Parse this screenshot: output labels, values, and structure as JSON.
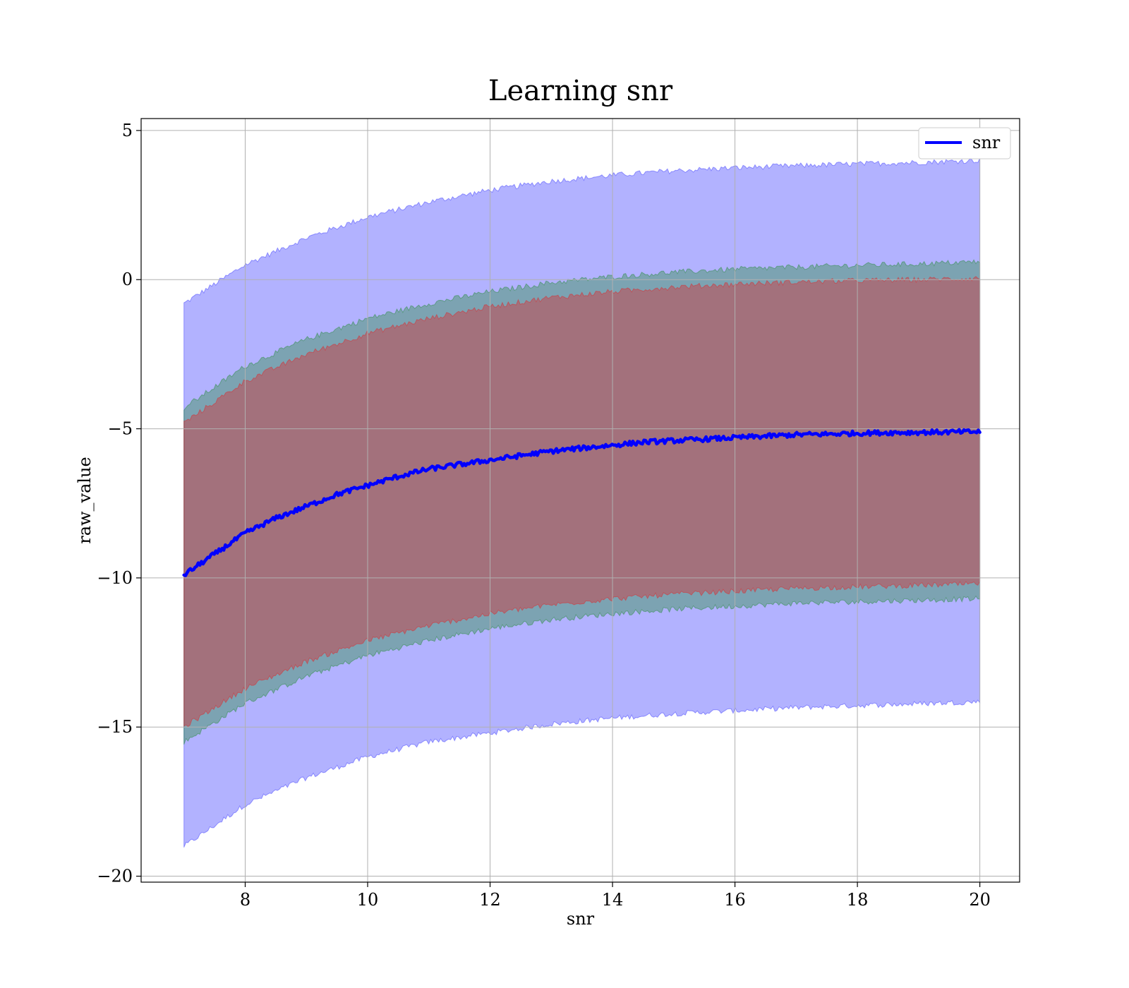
{
  "chart_data": {
    "type": "area",
    "title": "Learning snr",
    "xlabel": "snr",
    "ylabel": "raw_value",
    "xlim": [
      6.3,
      20.65
    ],
    "ylim": [
      -20.2,
      5.4
    ],
    "xticks": [
      8,
      10,
      12,
      14,
      16,
      18,
      20
    ],
    "yticks": [
      5,
      0,
      -5,
      -10,
      -15,
      -20
    ],
    "xtick_labels": [
      "8",
      "10",
      "12",
      "14",
      "16",
      "18",
      "20"
    ],
    "ytick_labels": [
      "5",
      "0",
      "−5",
      "−10",
      "−15",
      "−20"
    ],
    "grid": true,
    "legend": {
      "position": "top-right",
      "entries": [
        "snr"
      ]
    },
    "x_range": [
      7,
      20
    ],
    "bands": [
      {
        "color": "#0000ff",
        "x": [
          7,
          8,
          9,
          10,
          11,
          12,
          13,
          14,
          15,
          16,
          17,
          18,
          19,
          20
        ],
        "upper": [
          -0.8,
          0.5,
          1.4,
          2.1,
          2.6,
          3.0,
          3.3,
          3.5,
          3.65,
          3.75,
          3.82,
          3.88,
          3.93,
          4.0
        ],
        "lower": [
          -19.0,
          -17.6,
          -16.7,
          -16.0,
          -15.5,
          -15.2,
          -14.9,
          -14.7,
          -14.55,
          -14.45,
          -14.35,
          -14.28,
          -14.22,
          -14.15
        ]
      },
      {
        "color": "#008000",
        "x": [
          7,
          8,
          9,
          10,
          11,
          12,
          13,
          14,
          15,
          16,
          17,
          18,
          19,
          20
        ],
        "upper": [
          -4.3,
          -2.9,
          -2.0,
          -1.3,
          -0.8,
          -0.4,
          -0.1,
          0.1,
          0.25,
          0.35,
          0.42,
          0.48,
          0.53,
          0.6
        ],
        "lower": [
          -15.5,
          -14.2,
          -13.3,
          -12.6,
          -12.1,
          -11.7,
          -11.4,
          -11.2,
          -11.05,
          -10.95,
          -10.85,
          -10.8,
          -10.75,
          -10.7
        ]
      },
      {
        "color": "#ff0000",
        "x": [
          7,
          8,
          9,
          10,
          11,
          12,
          13,
          14,
          15,
          16,
          17,
          18,
          19,
          20
        ],
        "upper": [
          -4.8,
          -3.4,
          -2.5,
          -1.8,
          -1.3,
          -0.9,
          -0.6,
          -0.4,
          -0.25,
          -0.15,
          -0.08,
          -0.03,
          0.0,
          0.05
        ],
        "lower": [
          -15.0,
          -13.7,
          -12.8,
          -12.1,
          -11.6,
          -11.2,
          -10.9,
          -10.7,
          -10.55,
          -10.45,
          -10.35,
          -10.3,
          -10.25,
          -10.2
        ]
      }
    ],
    "series": [
      {
        "name": "snr",
        "color": "#0000ff",
        "x": [
          7,
          7.5,
          8,
          8.5,
          9,
          9.5,
          10,
          10.5,
          11,
          11.5,
          12,
          12.5,
          13,
          13.5,
          14,
          14.5,
          15,
          15.5,
          16,
          16.5,
          17,
          17.5,
          18,
          18.5,
          19,
          19.5,
          20
        ],
        "y": [
          -9.9,
          -9.2,
          -8.5,
          -8.0,
          -7.6,
          -7.2,
          -6.9,
          -6.6,
          -6.35,
          -6.2,
          -6.05,
          -5.9,
          -5.75,
          -5.65,
          -5.55,
          -5.45,
          -5.4,
          -5.35,
          -5.3,
          -5.25,
          -5.2,
          -5.18,
          -5.15,
          -5.13,
          -5.12,
          -5.11,
          -5.1
        ]
      }
    ]
  }
}
